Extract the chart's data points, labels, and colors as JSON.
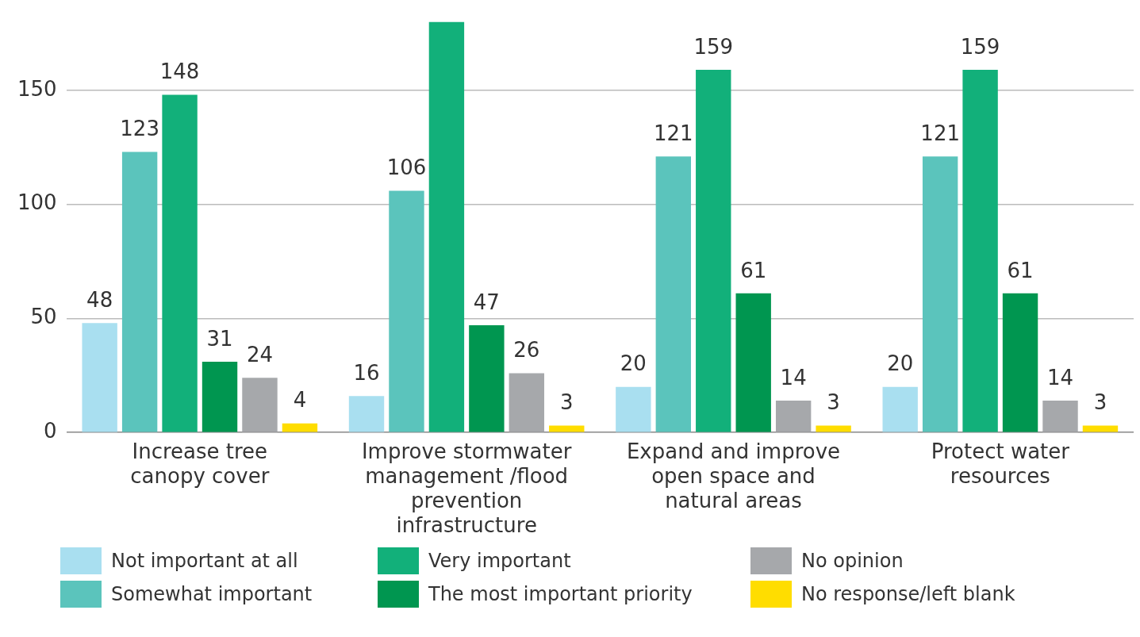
{
  "chart_data": {
    "type": "bar",
    "categories": [
      "Increase tree canopy cover",
      "Improve stormwater management /flood prevention infrastructure",
      "Expand and improve open space and natural areas",
      "Protect water resources"
    ],
    "series": [
      {
        "name": "Not important at all",
        "color": "#a9dff0",
        "values": [
          48,
          16,
          20,
          20
        ],
        "value_labels": [
          "48",
          "16",
          "20",
          "20"
        ]
      },
      {
        "name": "Somewhat important",
        "color": "#5bc4bc",
        "values": [
          123,
          106,
          121,
          121
        ],
        "value_labels": [
          "123",
          "106",
          "121",
          "121"
        ]
      },
      {
        "name": "Very important",
        "color": "#12b07a",
        "values": [
          148,
          180,
          159,
          159
        ],
        "value_labels": [
          "148",
          null,
          "159",
          "159"
        ]
      },
      {
        "name": "The most important priority",
        "color": "#009650",
        "values": [
          31,
          47,
          61,
          61
        ],
        "value_labels": [
          "31",
          "47",
          "61",
          "61"
        ]
      },
      {
        "name": "No opinion",
        "color": "#a6a8ab",
        "values": [
          24,
          26,
          14,
          14
        ],
        "value_labels": [
          "24",
          "26",
          "14",
          "14"
        ]
      },
      {
        "name": "No response/left blank",
        "color": "#ffdd00",
        "values": [
          4,
          3,
          3,
          3
        ],
        "value_labels": [
          "4",
          "3",
          "3",
          "3"
        ]
      }
    ],
    "ylim": [
      0,
      180
    ],
    "yticks": [
      0,
      50,
      100,
      150
    ],
    "grid": "y",
    "legend": "bottom"
  }
}
